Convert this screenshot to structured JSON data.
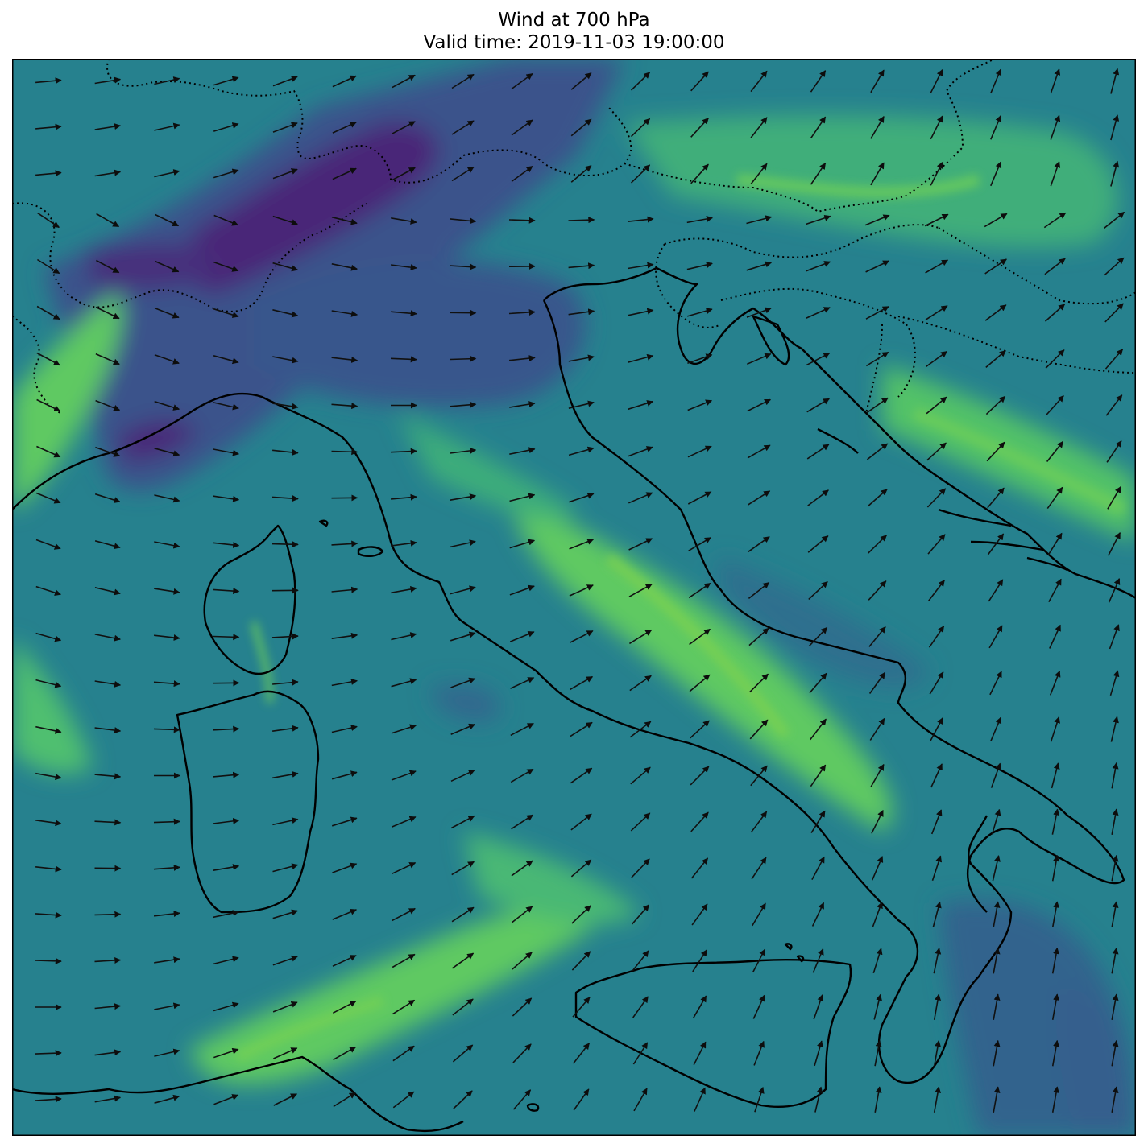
{
  "figure": {
    "title_line1": "Wind at 700 hPa",
    "title_line2": "Valid time: 2019-11-03 19:00:00"
  },
  "map": {
    "field": "wind speed at 700 hPa",
    "colormap": "viridis",
    "colors": {
      "low": "#440154",
      "mid": "#2a788e",
      "high": "#5ec962",
      "coastline": "#000000",
      "borders": "#000000"
    },
    "features": [
      "coastlines (solid)",
      "country borders (dotted)",
      "wind vectors (arrows)"
    ]
  }
}
